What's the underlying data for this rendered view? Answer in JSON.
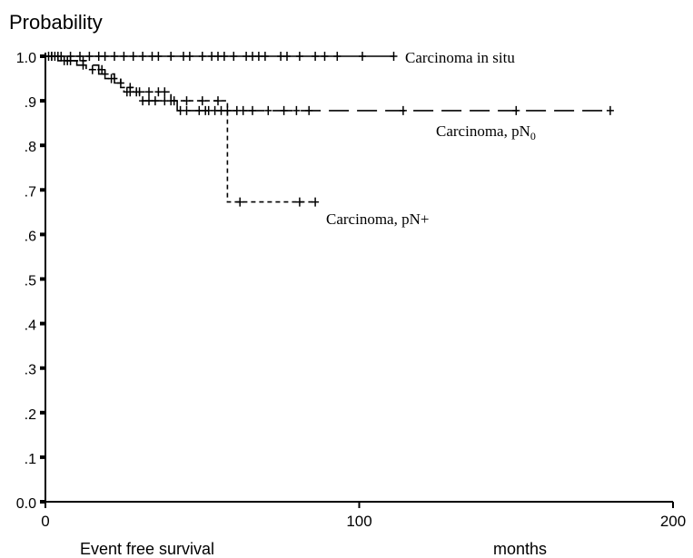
{
  "chart_data": {
    "type": "line",
    "title": "",
    "ylabel": "Probability",
    "xlabel_left": "Event free survival",
    "xlabel_right": "months",
    "xlim": [
      0,
      200
    ],
    "ylim": [
      0.0,
      1.0
    ],
    "x_ticks": [
      0,
      100,
      200
    ],
    "x_tick_labels": [
      "0",
      "100",
      "200"
    ],
    "y_ticks": [
      0.0,
      0.1,
      0.2,
      0.3,
      0.4,
      0.5,
      0.6,
      0.7,
      0.8,
      0.9,
      1.0
    ],
    "y_tick_labels": [
      "0.0",
      ".1",
      ".2",
      ".3",
      ".4",
      ".5",
      ".6",
      ".7",
      ".8",
      ".9",
      "1.0"
    ],
    "grid": false,
    "legend": "inline labels at line ends",
    "series": [
      {
        "name": "Carcinoma in situ",
        "label_sub": "",
        "style": "solid",
        "points": [
          [
            0,
            1.0
          ],
          [
            111,
            1.0
          ]
        ],
        "censors": [
          1,
          2,
          4,
          5,
          8,
          11,
          14,
          17,
          19,
          22,
          25,
          28,
          31,
          34,
          36,
          40,
          44,
          46,
          50,
          53,
          55,
          57,
          60,
          64,
          66,
          68,
          70,
          75,
          77,
          81,
          86,
          89,
          93,
          101,
          111
        ]
      },
      {
        "name": "Carcinoma, pN",
        "label_sub": "0",
        "style": "long-dash",
        "points": [
          [
            0,
            1.0
          ],
          [
            4,
            1.0
          ],
          [
            4,
            0.99
          ],
          [
            10,
            0.99
          ],
          [
            10,
            0.98
          ],
          [
            17,
            0.98
          ],
          [
            17,
            0.96
          ],
          [
            22,
            0.96
          ],
          [
            22,
            0.94
          ],
          [
            25,
            0.94
          ],
          [
            25,
            0.92
          ],
          [
            30,
            0.92
          ],
          [
            30,
            0.9
          ],
          [
            42,
            0.9
          ],
          [
            42,
            0.878
          ],
          [
            180,
            0.878
          ]
        ],
        "censors": [
          2,
          6,
          8,
          12,
          19,
          24,
          26,
          27,
          29,
          31,
          33,
          35,
          38,
          40,
          43,
          45,
          49,
          51,
          52,
          54,
          56,
          58,
          61,
          63,
          66,
          71,
          76,
          80,
          84,
          114,
          150,
          180
        ]
      },
      {
        "name": "Carcinoma, pN+",
        "label_sub": "",
        "style": "short-dash",
        "points": [
          [
            0,
            1.0
          ],
          [
            5,
            1.0
          ],
          [
            5,
            0.99
          ],
          [
            13,
            0.99
          ],
          [
            13,
            0.97
          ],
          [
            19,
            0.97
          ],
          [
            19,
            0.95
          ],
          [
            24,
            0.95
          ],
          [
            24,
            0.93
          ],
          [
            28,
            0.93
          ],
          [
            28,
            0.92
          ],
          [
            40,
            0.92
          ],
          [
            40,
            0.9
          ],
          [
            58,
            0.9
          ],
          [
            58,
            0.673
          ],
          [
            86,
            0.673
          ]
        ],
        "censors": [
          3,
          7,
          12,
          15,
          18,
          21,
          27,
          30,
          33,
          36,
          38,
          41,
          45,
          50,
          55,
          62,
          81,
          86
        ]
      }
    ]
  }
}
